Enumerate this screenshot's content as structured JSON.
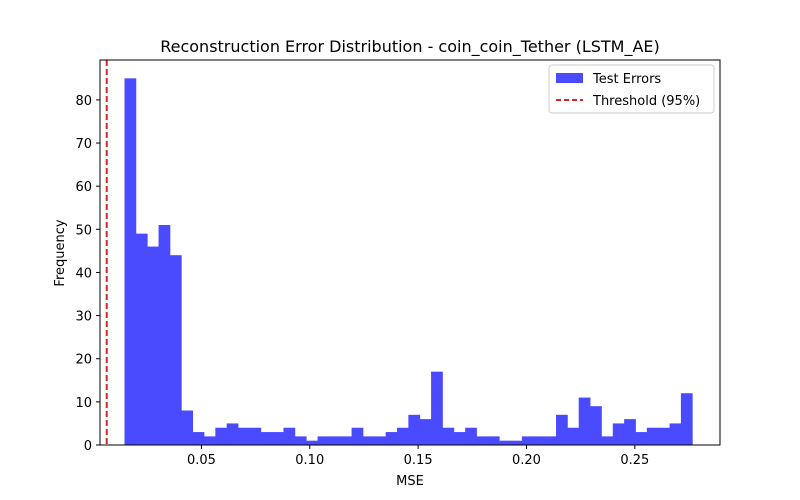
{
  "chart_data": {
    "type": "bar",
    "title": "Reconstruction Error Distribution - coin_coin_Tether (LSTM_AE)",
    "xlabel": "MSE",
    "ylabel": "Frequency",
    "xlim": [
      0.0032,
      0.2893
    ],
    "ylim": [
      0,
      89.25
    ],
    "x_ticks": [
      0.05,
      0.1,
      0.15,
      0.2,
      0.25
    ],
    "x_tick_labels": [
      "0.05",
      "0.10",
      "0.15",
      "0.20",
      "0.25"
    ],
    "y_ticks": [
      0,
      10,
      20,
      30,
      40,
      50,
      60,
      70,
      80
    ],
    "y_tick_labels": [
      "0",
      "10",
      "20",
      "30",
      "40",
      "50",
      "60",
      "70",
      "80"
    ],
    "bin_start": 0.0145,
    "bin_width": 0.00524,
    "values": [
      85,
      49,
      46,
      51,
      44,
      8,
      3,
      2,
      4,
      5,
      4,
      4,
      3,
      3,
      4,
      2,
      1,
      2,
      2,
      2,
      4,
      2,
      2,
      3,
      4,
      7,
      6,
      17,
      4,
      3,
      4,
      2,
      2,
      1,
      1,
      2,
      2,
      2,
      7,
      4,
      11,
      9,
      2,
      5,
      6,
      3,
      4,
      4,
      5,
      12
    ],
    "series_name": "Test Errors",
    "bar_color": "#4a4aff",
    "threshold": {
      "name": "Threshold (95%)",
      "value": 0.0063,
      "color": "#d62728"
    },
    "legend_position": "upper right",
    "grid": false
  }
}
